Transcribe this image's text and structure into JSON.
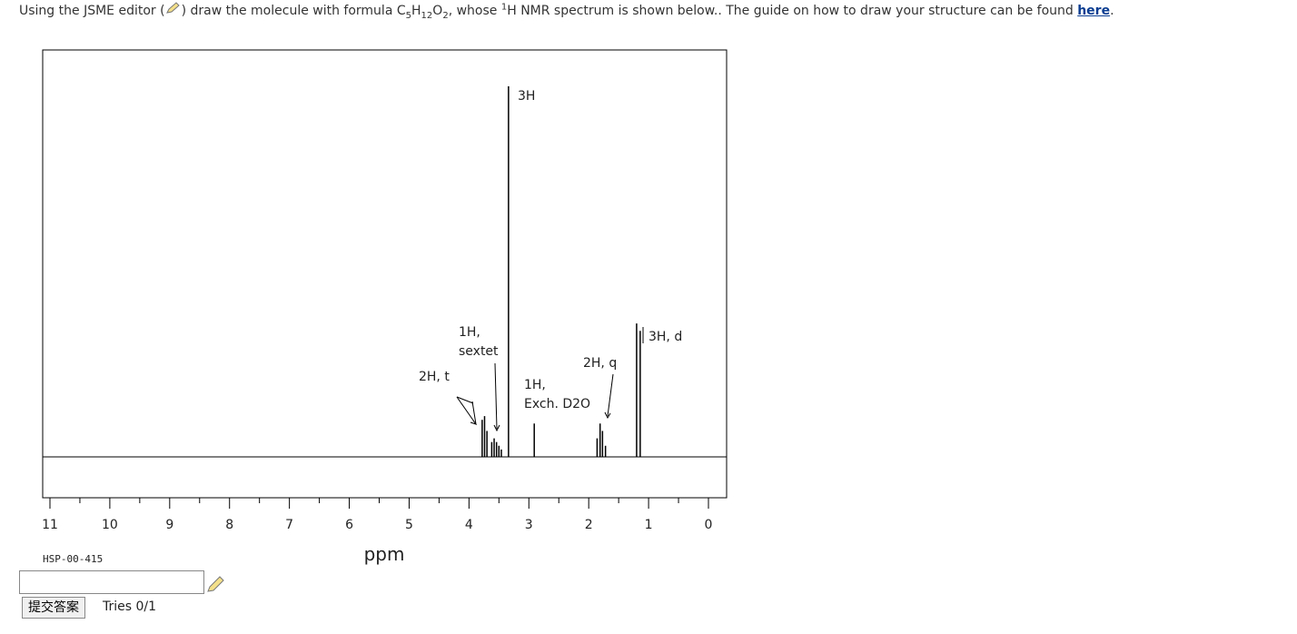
{
  "prompt": {
    "segments": [
      "Using the JSME editor (",
      ") draw the molecule with formula C",
      "5",
      "H",
      "12",
      "O",
      "2",
      ", whose ",
      "1",
      "H NMR spectrum is shown below.. The guide on how to draw your structure can be found ",
      "here",
      "."
    ]
  },
  "chart_data": {
    "type": "nmr",
    "xlabel": "ppm",
    "code": "HSP-00-415",
    "xlim": [
      11,
      0
    ],
    "xticks": [
      11,
      10,
      9,
      8,
      7,
      6,
      5,
      4,
      3,
      2,
      1,
      0
    ],
    "x": [
      3.78,
      3.74,
      3.7,
      3.62,
      3.58,
      3.54,
      3.5,
      3.46,
      3.34,
      2.91,
      1.86,
      1.81,
      1.77,
      1.72,
      1.2,
      1.14
    ],
    "values": [
      10,
      11,
      7,
      4,
      5,
      4,
      3,
      2,
      100,
      9,
      5,
      9,
      7,
      3,
      36,
      34
    ],
    "color": "#000000",
    "annotations": [
      [
        "3H"
      ],
      [
        "3H, d"
      ],
      [
        "1H,",
        "sextet"
      ],
      [
        "2H, t"
      ],
      [
        "1H,",
        "Exch. D2O"
      ],
      [
        "2H, q"
      ]
    ]
  },
  "form": {
    "button": "提交答案",
    "tries": "Tries 0/1"
  }
}
